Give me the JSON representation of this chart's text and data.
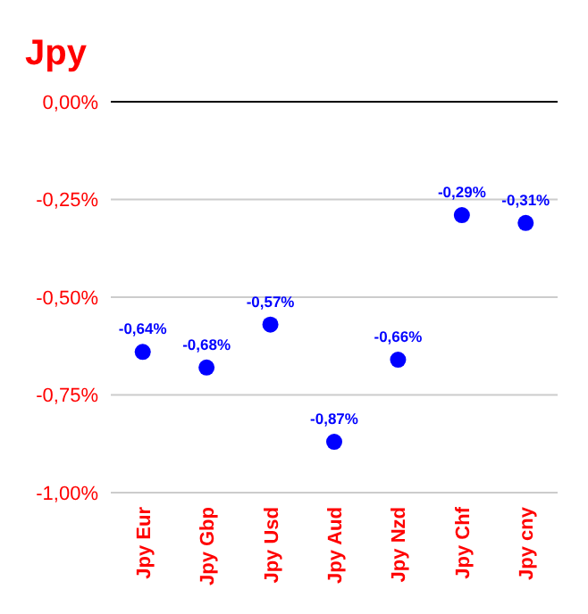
{
  "chart_data": {
    "type": "scatter",
    "title": "Jpy",
    "categories": [
      "Jpy Eur",
      "Jpy Gbp",
      "Jpy Usd",
      "Jpy Aud",
      "Jpy Nzd",
      "Jpy Chf",
      "Jpy cny"
    ],
    "series": [
      {
        "color": "#0000ff",
        "values": [
          -0.64,
          -0.68,
          -0.57,
          -0.87,
          -0.66,
          -0.29,
          -0.31
        ],
        "value_labels": [
          "-0,64%",
          "-0,68%",
          "-0,57%",
          "-0,87%",
          "-0,66%",
          "-0,29%",
          "-0,31%"
        ]
      }
    ],
    "ylim": [
      -1,
      0
    ],
    "yticks": [
      {
        "value": 0,
        "label": "0,00%"
      },
      {
        "value": -0.25,
        "label": "-0,25%"
      },
      {
        "value": -0.5,
        "label": "-0,50%"
      },
      {
        "value": -0.75,
        "label": "-0,75%"
      },
      {
        "value": -1,
        "label": "-1,00%"
      }
    ],
    "grid": "y",
    "marker": "circle"
  }
}
